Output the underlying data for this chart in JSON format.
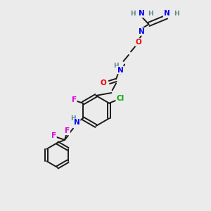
{
  "background_color": "#ebebeb",
  "bond_color": "#1a1a1a",
  "atom_colors": {
    "C": "#1a1a1a",
    "H": "#5a8a8a",
    "N": "#0000ee",
    "O": "#ee0000",
    "F": "#dd00dd",
    "Cl": "#00aa00"
  },
  "figsize": [
    3.0,
    3.0
  ],
  "dpi": 100
}
